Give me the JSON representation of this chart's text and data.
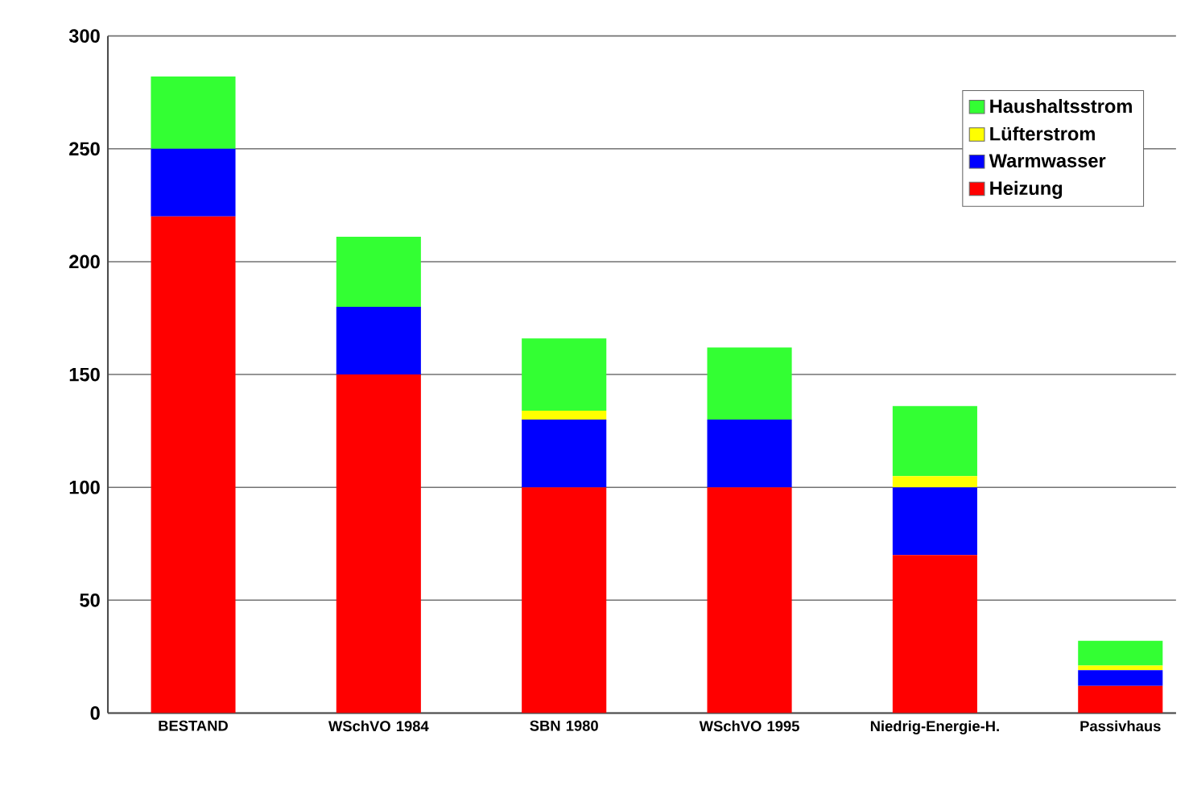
{
  "chart_data": {
    "type": "bar",
    "stacked": true,
    "categories": [
      "BESTAND",
      "WSchVO 1984",
      "SBN 1980",
      "WSchVO 1995",
      "Niedrig-Energie-H.",
      "Passivhaus"
    ],
    "series": [
      {
        "name": "Heizung",
        "color": "#ff0000",
        "values": [
          220,
          150,
          100,
          100,
          70,
          12
        ]
      },
      {
        "name": "Warmwasser",
        "color": "#0000ff",
        "values": [
          30,
          30,
          30,
          30,
          30,
          7
        ]
      },
      {
        "name": "Lüfterstrom",
        "color": "#ffff00",
        "values": [
          0,
          0,
          4,
          0,
          5,
          2
        ]
      },
      {
        "name": "Haushaltsstrom",
        "color": "#33ff33",
        "values": [
          32,
          31,
          32,
          32,
          31,
          11
        ]
      }
    ],
    "ylim": [
      0,
      300
    ],
    "yticks": [
      0,
      50,
      100,
      150,
      200,
      250,
      300
    ],
    "grid": "y",
    "legend": "top right"
  }
}
